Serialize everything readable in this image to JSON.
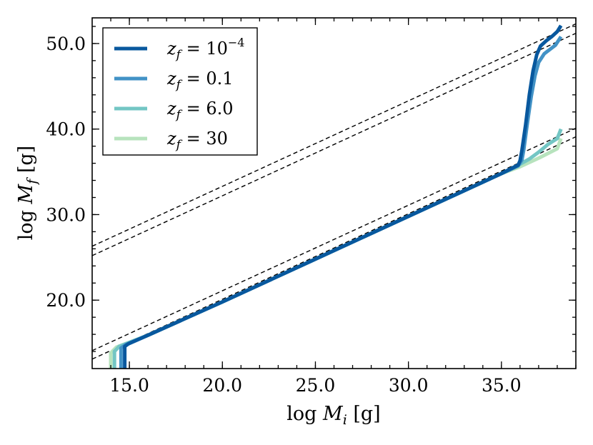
{
  "chart_data": {
    "type": "line",
    "title": "",
    "xlabel": {
      "prefix": "log ",
      "var": "M",
      "sub": "i",
      "unit": " [g]"
    },
    "ylabel": {
      "prefix": "log ",
      "var": "M",
      "sub": "f",
      "unit": " [g]"
    },
    "xlim": [
      13.0,
      39.0
    ],
    "ylim": [
      12.0,
      53.0
    ],
    "xticks": [
      15,
      20,
      25,
      30,
      35
    ],
    "xtick_labels": [
      "15.0",
      "20.0",
      "25.0",
      "30.0",
      "35.0"
    ],
    "yticks": [
      20,
      30,
      40,
      50
    ],
    "ytick_labels": [
      "20.0",
      "30.0",
      "40.0",
      "50.0"
    ],
    "grid": false,
    "legend_position": "top-left",
    "reference_lines": [
      {
        "name": "upper-bound-1",
        "style": "dashed",
        "points": [
          [
            13.0,
            26.3
          ],
          [
            39.0,
            52.3
          ]
        ]
      },
      {
        "name": "upper-bound-2",
        "style": "dashed",
        "points": [
          [
            13.0,
            25.2
          ],
          [
            39.0,
            51.2
          ]
        ]
      },
      {
        "name": "lower-bound-1",
        "style": "dashed",
        "points": [
          [
            13.0,
            14.1
          ],
          [
            39.0,
            40.1
          ]
        ]
      },
      {
        "name": "lower-bound-2",
        "style": "dashed",
        "points": [
          [
            13.0,
            13.1
          ],
          [
            39.0,
            39.1
          ]
        ]
      }
    ],
    "series": [
      {
        "name": "z_f = 10^-4",
        "label_base": "10",
        "label_exp": "−4",
        "color": "#08589e",
        "x": [
          14.75,
          14.75,
          14.95,
          16.0,
          20.0,
          25.0,
          30.0,
          35.0,
          35.9,
          36.0,
          36.1,
          36.3,
          36.5,
          36.7,
          36.9,
          37.1,
          37.4,
          37.7,
          38.0,
          38.2
        ],
        "y": [
          12.0,
          14.6,
          14.9,
          15.9,
          19.8,
          24.8,
          29.8,
          34.8,
          35.8,
          36.3,
          37.5,
          40.5,
          44.0,
          46.8,
          48.7,
          49.7,
          50.3,
          50.8,
          51.4,
          52.1
        ]
      },
      {
        "name": "z_f = 0.1",
        "label_base": "0.1",
        "label_exp": "",
        "color": "#4292c6",
        "x": [
          14.55,
          14.55,
          14.8,
          16.0,
          20.0,
          25.0,
          30.0,
          35.0,
          35.9,
          36.1,
          36.2,
          36.4,
          36.6,
          36.8,
          37.0,
          37.3,
          37.6,
          37.9,
          38.2
        ],
        "y": [
          12.0,
          14.4,
          14.8,
          15.9,
          19.8,
          24.8,
          29.8,
          34.8,
          35.7,
          36.4,
          37.6,
          40.8,
          43.8,
          46.2,
          47.8,
          48.8,
          49.3,
          49.8,
          50.8
        ]
      },
      {
        "name": "z_f = 6.0",
        "label_base": "6.0",
        "label_exp": "",
        "color": "#73c6c4",
        "x": [
          14.2,
          14.2,
          14.45,
          16.0,
          20.0,
          25.0,
          30.0,
          35.0,
          36.0,
          36.5,
          37.0,
          37.5,
          38.0,
          38.2
        ],
        "y": [
          12.0,
          14.0,
          14.6,
          15.9,
          19.8,
          24.8,
          29.8,
          34.8,
          35.9,
          36.5,
          37.3,
          38.2,
          38.9,
          40.0
        ]
      },
      {
        "name": "z_f = 30",
        "label_base": "30",
        "label_exp": "",
        "color": "#b7e3bd",
        "x": [
          14.0,
          14.0,
          14.3,
          16.0,
          20.0,
          25.0,
          30.0,
          35.0,
          36.0,
          37.0,
          38.0,
          38.2
        ],
        "y": [
          12.0,
          13.8,
          14.5,
          15.9,
          19.8,
          24.8,
          29.8,
          34.8,
          35.6,
          36.6,
          37.7,
          38.9
        ]
      }
    ]
  }
}
